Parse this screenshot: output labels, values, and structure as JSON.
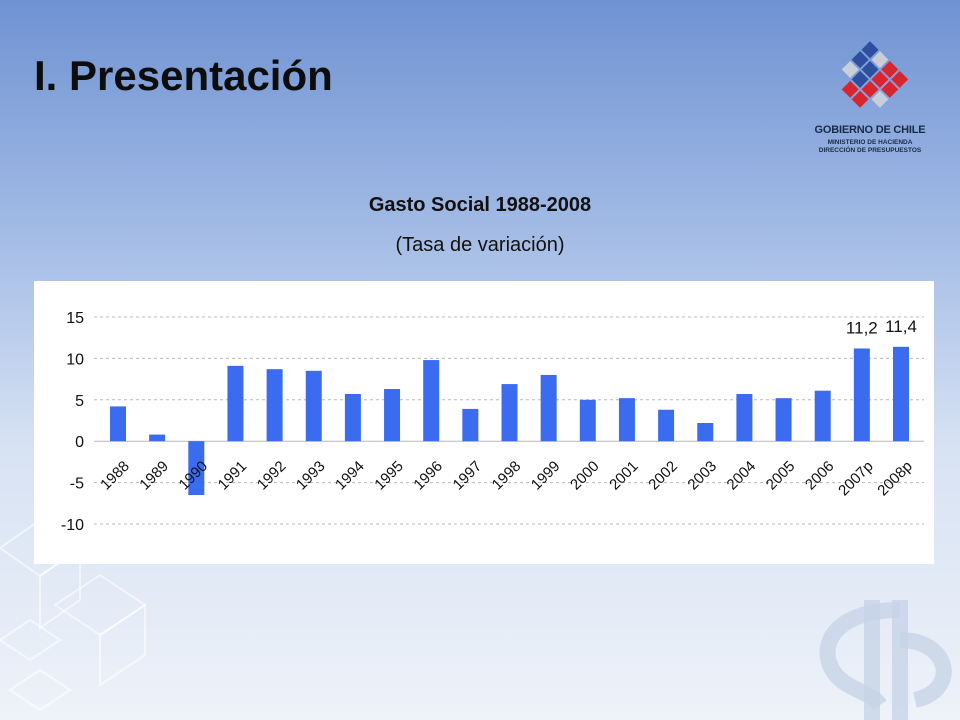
{
  "slide": {
    "title": "I. Presentación"
  },
  "logo": {
    "name": "gobierno-de-chile-logo",
    "line1": "GOBIERNO DE CHILE",
    "line2": "MINISTERIO DE HACIENDA",
    "line3": "DIRECCIÓN DE PRESUPUESTOS"
  },
  "colors": {
    "bar": "#3b6cf0",
    "grid": "#b8b8b8",
    "panel": "#ffffff"
  },
  "chart_data": {
    "type": "bar",
    "title": "Gasto Social 1988-2008",
    "subtitle": "(Tasa de variación)",
    "xlabel": "",
    "ylabel": "",
    "ylim": [
      -10,
      15
    ],
    "yticks": [
      -10,
      -5,
      0,
      5,
      10,
      15
    ],
    "ytick_labels": [
      "-10",
      "-5",
      "0",
      "5",
      "10",
      "15"
    ],
    "grid": true,
    "categories": [
      "1988",
      "1989",
      "1990",
      "1991",
      "1992",
      "1993",
      "1994",
      "1995",
      "1996",
      "1997",
      "1998",
      "1999",
      "2000",
      "2001",
      "2002",
      "2003",
      "2004",
      "2005",
      "2006",
      "2007p",
      "2008p"
    ],
    "values": [
      4.2,
      0.8,
      -6.5,
      9.1,
      8.7,
      8.5,
      5.7,
      6.3,
      9.8,
      3.9,
      6.9,
      8.0,
      5.0,
      5.2,
      3.8,
      2.2,
      5.7,
      5.2,
      6.1,
      11.2,
      11.4
    ],
    "data_labels": {
      "19": "11,2",
      "20": "11,4"
    }
  }
}
